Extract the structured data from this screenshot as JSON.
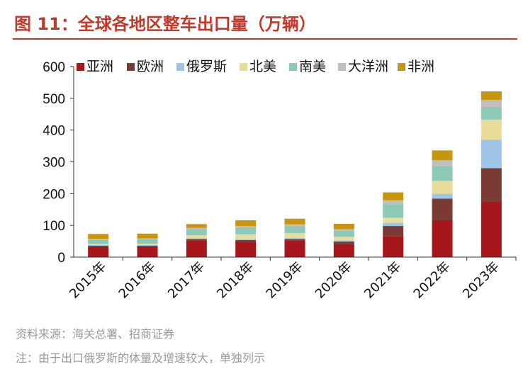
{
  "title": "图 11：全球各地区整车出口量（万辆）",
  "footnotes": {
    "source": "资料来源：海关总署、招商证券",
    "note": "注：由于出口俄罗斯的体量及增速较大，单独列示"
  },
  "chart_data": {
    "type": "bar",
    "stacked": true,
    "title": "",
    "xlabel": "",
    "ylabel": "",
    "ylim": [
      0,
      600
    ],
    "yticks": [
      0,
      100,
      200,
      300,
      400,
      500,
      600
    ],
    "grid": false,
    "legend_position": "top",
    "categories": [
      "2015年",
      "2016年",
      "2017年",
      "2018年",
      "2019年",
      "2020年",
      "2021年",
      "2022年",
      "2023年"
    ],
    "series": [
      {
        "name": "亚洲",
        "color": "#A6161A",
        "values": [
          33,
          33,
          53,
          50,
          52,
          41,
          65,
          116,
          175
        ]
      },
      {
        "name": "欧洲",
        "color": "#7B3A34",
        "values": [
          3,
          3,
          4,
          4,
          5,
          8,
          33,
          68,
          105
        ]
      },
      {
        "name": "俄罗斯",
        "color": "#9EC5E8",
        "values": [
          2,
          2,
          2,
          2,
          3,
          3,
          10,
          16,
          90
        ]
      },
      {
        "name": "北美",
        "color": "#E8DC9A",
        "values": [
          3,
          4,
          10,
          16,
          16,
          12,
          16,
          40,
          63
        ]
      },
      {
        "name": "南美",
        "color": "#8EC9B8",
        "values": [
          14,
          14,
          20,
          22,
          22,
          20,
          43,
          47,
          40
        ]
      },
      {
        "name": "大洋洲",
        "color": "#BFBFBF",
        "values": [
          3,
          3,
          3,
          4,
          5,
          4,
          12,
          18,
          22
        ]
      },
      {
        "name": "非洲",
        "color": "#C7950F",
        "values": [
          15,
          15,
          12,
          18,
          18,
          17,
          25,
          31,
          27
        ]
      }
    ]
  }
}
